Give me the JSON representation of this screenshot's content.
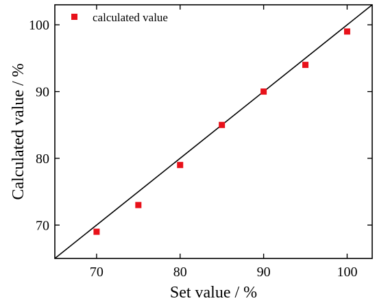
{
  "colors": {
    "marker": "#e8111a",
    "axis": "#000000",
    "reference_line": "#000000",
    "background": "#ffffff"
  },
  "chart_data": {
    "type": "scatter",
    "xlabel": "Set value / %",
    "ylabel": "Calculated value / %",
    "xlim": [
      65,
      103
    ],
    "ylim": [
      65,
      103
    ],
    "x_ticks": [
      70,
      80,
      90,
      100
    ],
    "y_ticks": [
      70,
      80,
      90,
      100
    ],
    "grid": false,
    "legend_position": "top-left",
    "reference_line": "y = x",
    "series": [
      {
        "name": "calculated value",
        "marker": "square",
        "points": [
          {
            "x": 70,
            "y": 69
          },
          {
            "x": 75,
            "y": 73
          },
          {
            "x": 80,
            "y": 79
          },
          {
            "x": 85,
            "y": 85
          },
          {
            "x": 90,
            "y": 90
          },
          {
            "x": 95,
            "y": 94
          },
          {
            "x": 100,
            "y": 99
          }
        ]
      }
    ]
  }
}
